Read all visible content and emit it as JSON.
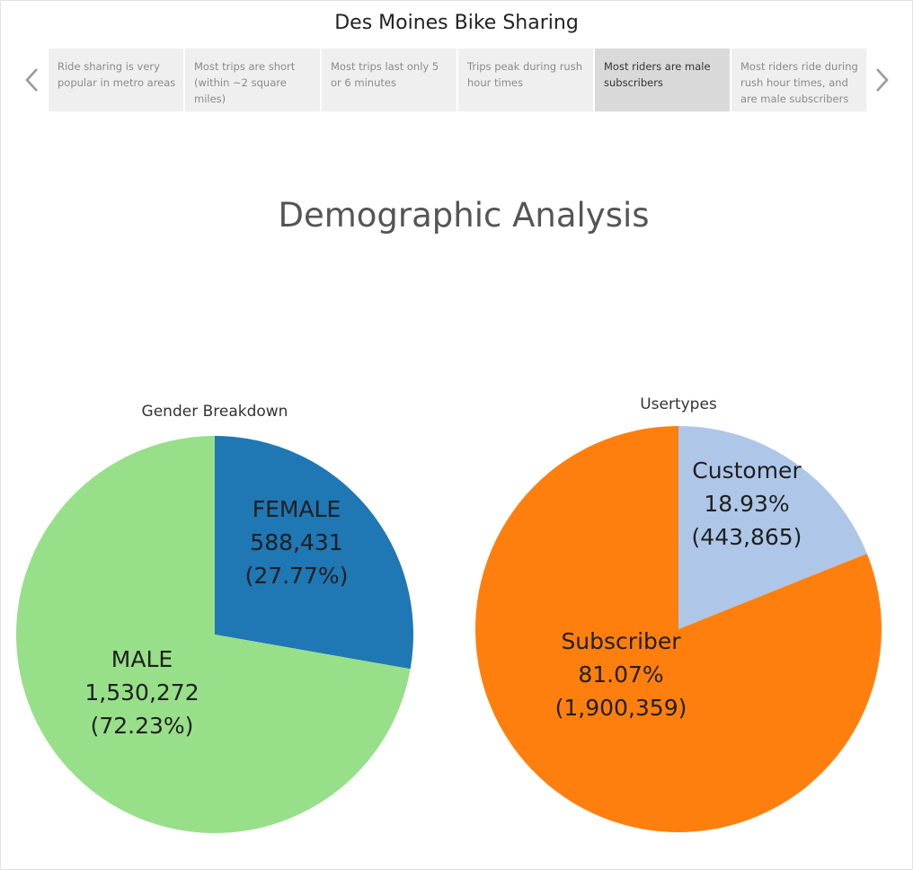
{
  "story": {
    "title": "Des Moines Bike Sharing",
    "points": [
      {
        "label": "Ride sharing is very popular in metro areas",
        "active": false
      },
      {
        "label": "Most trips are short (within ~2 square miles)",
        "active": false
      },
      {
        "label": "Most trips last only 5 or 6 minutes",
        "active": false
      },
      {
        "label": "Trips peak during rush hour times",
        "active": false
      },
      {
        "label": "Most riders are male subscribers",
        "active": true
      },
      {
        "label": "Most riders ride during rush hour times, and are male subscribers",
        "active": false
      }
    ],
    "prev_icon": "chevron-left-icon",
    "next_icon": "chevron-right-icon"
  },
  "dashboard": {
    "title": "Demographic Analysis"
  },
  "chart_data": [
    {
      "type": "pie",
      "title": "Gender Breakdown",
      "categories": [
        "FEMALE",
        "MALE"
      ],
      "values": [
        588431,
        1530272
      ],
      "value_labels": [
        "588,431",
        "1,530,272"
      ],
      "percent_labels": [
        "(27.77%)",
        "(72.23%)"
      ],
      "percents": [
        27.77,
        72.23
      ],
      "colors": [
        "#1f77b4",
        "#98df8a"
      ],
      "start_angle_deg": 0,
      "direction": "clockwise"
    },
    {
      "type": "pie",
      "title": "Usertypes",
      "categories": [
        "Customer",
        "Subscriber"
      ],
      "values": [
        443865,
        1900359
      ],
      "value_labels": [
        "(443,865)",
        "(1,900,359)"
      ],
      "percent_labels": [
        "18.93%",
        "81.07%"
      ],
      "percents": [
        18.93,
        81.07
      ],
      "colors": [
        "#aec7e8",
        "#ff7f0e"
      ],
      "start_angle_deg": 0,
      "direction": "clockwise"
    }
  ]
}
